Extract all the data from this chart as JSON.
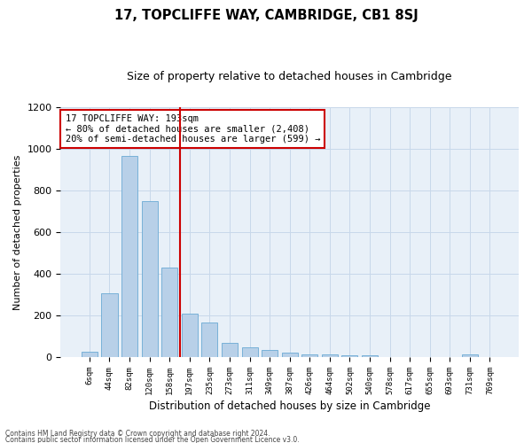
{
  "title": "17, TOPCLIFFE WAY, CAMBRIDGE, CB1 8SJ",
  "subtitle": "Size of property relative to detached houses in Cambridge",
  "xlabel": "Distribution of detached houses by size in Cambridge",
  "ylabel": "Number of detached properties",
  "categories": [
    "6sqm",
    "44sqm",
    "82sqm",
    "120sqm",
    "158sqm",
    "197sqm",
    "235sqm",
    "273sqm",
    "311sqm",
    "349sqm",
    "387sqm",
    "426sqm",
    "464sqm",
    "502sqm",
    "540sqm",
    "578sqm",
    "617sqm",
    "655sqm",
    "693sqm",
    "731sqm",
    "769sqm"
  ],
  "values": [
    25,
    305,
    965,
    748,
    430,
    210,
    168,
    70,
    48,
    33,
    22,
    15,
    13,
    10,
    10,
    0,
    0,
    0,
    0,
    12,
    0
  ],
  "bar_color": "#b8d0e8",
  "bar_edge_color": "#6aaad4",
  "vline_color": "#cc0000",
  "annotation_text": "17 TOPCLIFFE WAY: 193sqm\n← 80% of detached houses are smaller (2,408)\n20% of semi-detached houses are larger (599) →",
  "annotation_box_color": "#ffffff",
  "annotation_box_edge": "#cc0000",
  "ylim": [
    0,
    1200
  ],
  "yticks": [
    0,
    200,
    400,
    600,
    800,
    1000,
    1200
  ],
  "grid_color": "#c8d8ea",
  "bg_color": "#e8f0f8",
  "footer1": "Contains HM Land Registry data © Crown copyright and database right 2024.",
  "footer2": "Contains public sector information licensed under the Open Government Licence v3.0."
}
